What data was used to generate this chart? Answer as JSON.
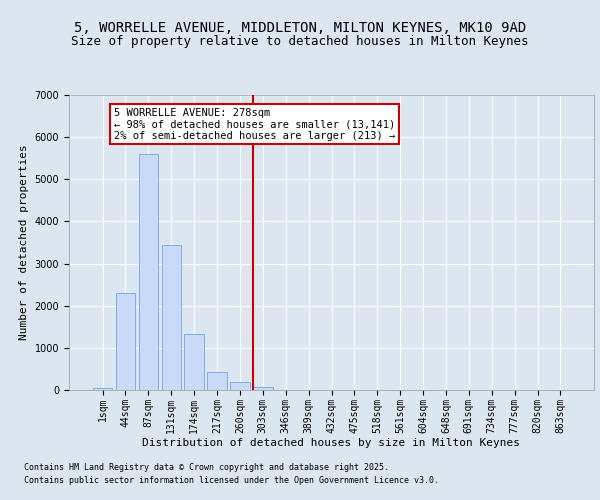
{
  "title": "5, WORRELLE AVENUE, MIDDLETON, MILTON KEYNES, MK10 9AD",
  "subtitle": "Size of property relative to detached houses in Milton Keynes",
  "xlabel": "Distribution of detached houses by size in Milton Keynes",
  "ylabel": "Number of detached properties",
  "categories": [
    "1sqm",
    "44sqm",
    "87sqm",
    "131sqm",
    "174sqm",
    "217sqm",
    "260sqm",
    "303sqm",
    "346sqm",
    "389sqm",
    "432sqm",
    "475sqm",
    "518sqm",
    "561sqm",
    "604sqm",
    "648sqm",
    "691sqm",
    "734sqm",
    "777sqm",
    "820sqm",
    "863sqm"
  ],
  "values": [
    55,
    2300,
    5600,
    3450,
    1320,
    420,
    180,
    75,
    0,
    0,
    0,
    0,
    0,
    0,
    0,
    0,
    0,
    0,
    0,
    0,
    0
  ],
  "bar_color": "#c9daf8",
  "bar_edge_color": "#6fa8dc",
  "vline_x_index": 6.55,
  "vline_color": "#cc0000",
  "annotation_text": "5 WORRELLE AVENUE: 278sqm\n← 98% of detached houses are smaller (13,141)\n2% of semi-detached houses are larger (213) →",
  "annotation_box_color": "#cc0000",
  "ylim": [
    0,
    7000
  ],
  "yticks": [
    0,
    1000,
    2000,
    3000,
    4000,
    5000,
    6000,
    7000
  ],
  "footer_line1": "Contains HM Land Registry data © Crown copyright and database right 2025.",
  "footer_line2": "Contains public sector information licensed under the Open Government Licence v3.0.",
  "background_color": "#dce6f1",
  "plot_bg_color": "#dce6f1",
  "grid_color": "#ffffff",
  "title_fontsize": 10,
  "subtitle_fontsize": 9,
  "axis_fontsize": 8,
  "tick_fontsize": 7,
  "footer_fontsize": 6,
  "annot_fontsize": 7.5
}
